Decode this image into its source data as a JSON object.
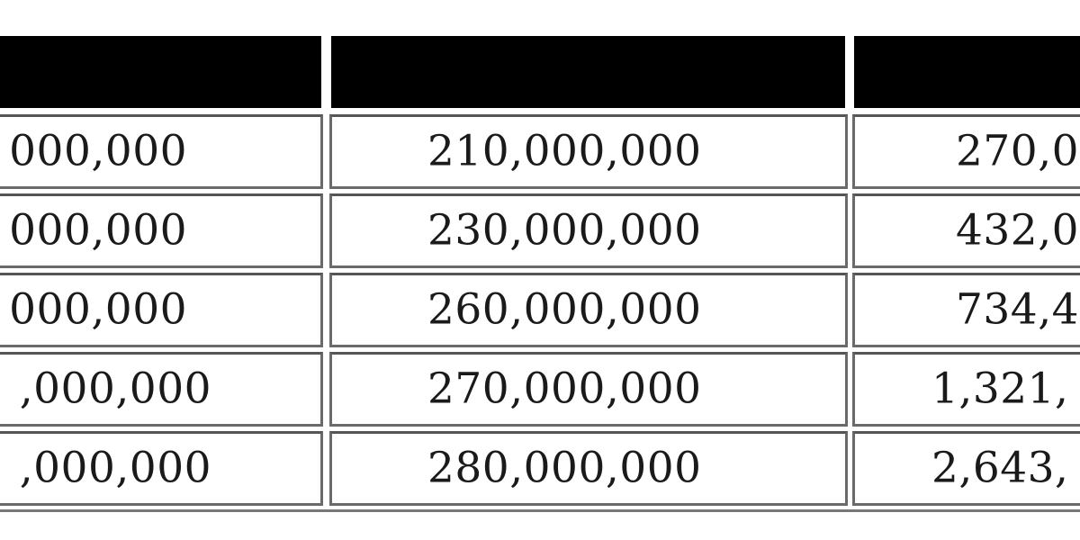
{
  "table": {
    "header_color": "#000000",
    "rows": [
      [
        "000,000",
        "210,000,000",
        "270,0"
      ],
      [
        "000,000",
        "230,000,000",
        "432,0"
      ],
      [
        "000,000",
        "260,000,000",
        "734,4"
      ],
      [
        ",000,000",
        "270,000,000",
        "1,321,"
      ],
      [
        ",000,000",
        "280,000,000",
        "2,643,"
      ]
    ]
  }
}
